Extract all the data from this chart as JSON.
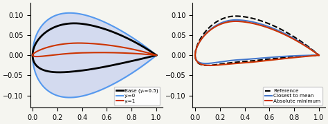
{
  "left_legend": [
    {
      "label": "Base (yᵢ=0.5)",
      "color": "black",
      "lw": 2.0
    },
    {
      "label": "yᵢ=0",
      "color": "#5599ee",
      "lw": 1.5
    },
    {
      "label": "yᵢ=1",
      "color": "#cc3300",
      "lw": 1.5
    }
  ],
  "right_legend": [
    {
      "label": "Reference",
      "color": "black",
      "lw": 1.5,
      "ls": "--"
    },
    {
      "label": "Closest to mean",
      "color": "#4477cc",
      "lw": 1.5,
      "ls": "-"
    },
    {
      "label": "Absolute minimum",
      "color": "#cc3300",
      "lw": 1.5,
      "ls": "-"
    }
  ],
  "xlim": [
    -0.02,
    1.05
  ],
  "ylim": [
    -0.13,
    0.13
  ],
  "xlim_left": [
    -0.02,
    1.05
  ],
  "xlim_right": [
    -0.02,
    1.05
  ],
  "fill_color": "#aabbee",
  "fill_alpha": 0.45,
  "background": "#f5f5f0",
  "fontsize": 7,
  "xticks": [
    0,
    0.2,
    0.4,
    0.6,
    0.8,
    1.0
  ],
  "yticks_left": [
    -0.1,
    -0.05,
    0,
    0.05,
    0.1
  ],
  "yticks_right": [
    -0.1,
    -0.05,
    0,
    0.05,
    0.1
  ]
}
